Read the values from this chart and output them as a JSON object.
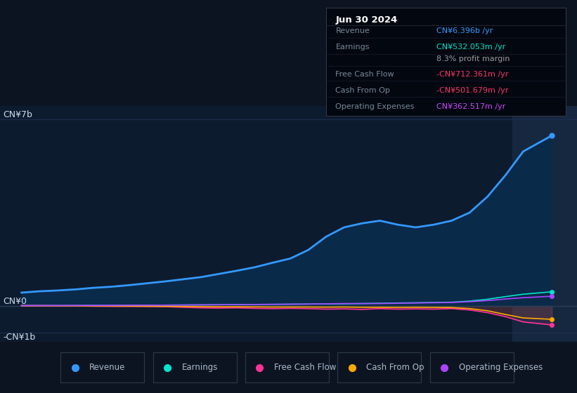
{
  "bg_color": "#0d1421",
  "plot_bg_color": "#0d1b2e",
  "grid_color": "#1e3050",
  "title_box": {
    "title": "Jun 30 2024",
    "rows": [
      {
        "label": "Revenue",
        "value": "CN¥6.396b /yr",
        "value_color": "#3399ff"
      },
      {
        "label": "Earnings",
        "value": "CN¥532.053m /yr",
        "value_color": "#00e5cc"
      },
      {
        "label": "",
        "value": "8.3% profit margin",
        "value_color": "#999999"
      },
      {
        "label": "Free Cash Flow",
        "value": "-CN¥712.361m /yr",
        "value_color": "#ff3366"
      },
      {
        "label": "Cash From Op",
        "value": "-CN¥501.679m /yr",
        "value_color": "#ff3366"
      },
      {
        "label": "Operating Expenses",
        "value": "CN¥362.517m /yr",
        "value_color": "#cc44ff"
      }
    ]
  },
  "years": [
    2017.0,
    2017.25,
    2017.5,
    2017.75,
    2018.0,
    2018.25,
    2018.5,
    2018.75,
    2019.0,
    2019.25,
    2019.5,
    2019.75,
    2020.0,
    2020.25,
    2020.5,
    2020.75,
    2021.0,
    2021.25,
    2021.5,
    2021.75,
    2022.0,
    2022.25,
    2022.5,
    2022.75,
    2023.0,
    2023.25,
    2023.5,
    2023.75,
    2024.0,
    2024.4
  ],
  "revenue": [
    0.5,
    0.55,
    0.58,
    0.62,
    0.68,
    0.72,
    0.78,
    0.85,
    0.92,
    1.0,
    1.08,
    1.2,
    1.32,
    1.45,
    1.62,
    1.78,
    2.1,
    2.6,
    2.95,
    3.1,
    3.2,
    3.05,
    2.95,
    3.05,
    3.2,
    3.5,
    4.1,
    4.9,
    5.8,
    6.396
  ],
  "earnings": [
    0.01,
    0.01,
    0.01,
    0.015,
    0.02,
    0.02,
    0.025,
    0.03,
    0.03,
    0.035,
    0.04,
    0.045,
    0.05,
    0.055,
    0.06,
    0.065,
    0.07,
    0.075,
    0.08,
    0.09,
    0.1,
    0.11,
    0.12,
    0.13,
    0.14,
    0.18,
    0.25,
    0.35,
    0.44,
    0.532
  ],
  "free_cash_flow": [
    0.005,
    0.005,
    0.002,
    0.0,
    -0.01,
    -0.015,
    -0.018,
    -0.02,
    -0.025,
    -0.05,
    -0.07,
    -0.08,
    -0.07,
    -0.09,
    -0.1,
    -0.09,
    -0.1,
    -0.12,
    -0.11,
    -0.13,
    -0.1,
    -0.12,
    -0.11,
    -0.12,
    -0.1,
    -0.15,
    -0.25,
    -0.4,
    -0.6,
    -0.712
  ],
  "cash_from_op": [
    0.01,
    0.01,
    0.008,
    0.005,
    0.002,
    0.0,
    -0.005,
    -0.01,
    -0.015,
    -0.02,
    -0.025,
    -0.03,
    -0.03,
    -0.035,
    -0.04,
    -0.04,
    -0.04,
    -0.045,
    -0.04,
    -0.05,
    -0.05,
    -0.055,
    -0.05,
    -0.055,
    -0.06,
    -0.1,
    -0.18,
    -0.32,
    -0.45,
    -0.502
  ],
  "operating_expenses": [
    0.015,
    0.016,
    0.017,
    0.018,
    0.02,
    0.022,
    0.025,
    0.028,
    0.03,
    0.035,
    0.04,
    0.045,
    0.05,
    0.055,
    0.06,
    0.065,
    0.07,
    0.08,
    0.09,
    0.09,
    0.09,
    0.1,
    0.11,
    0.12,
    0.13,
    0.16,
    0.2,
    0.26,
    0.31,
    0.363
  ],
  "revenue_color": "#3399ff",
  "earnings_color": "#00e5cc",
  "fcf_color": "#ff3399",
  "cashfromop_color": "#ffaa00",
  "opex_color": "#aa44ff",
  "revenue_fill_color": "#0a2a4a",
  "highlight_color": "#152840",
  "zero_line_color": "#2a3f5a",
  "ylabel_0": "CN¥7b",
  "ylabel_mid": "CN¥0",
  "ylabel_neg": "-CN¥1b",
  "xlim": [
    2016.7,
    2024.75
  ],
  "ylim": [
    -1.35,
    7.5
  ],
  "y0_val": 7.0,
  "ymid_val": 0.0,
  "yneg_val": -1.0,
  "xticks": [
    2017,
    2018,
    2019,
    2020,
    2021,
    2022,
    2023,
    2024
  ],
  "highlight_start": 2023.85,
  "highlight_end": 2024.75,
  "legend": [
    {
      "label": "Revenue",
      "color": "#3399ff"
    },
    {
      "label": "Earnings",
      "color": "#00e5cc"
    },
    {
      "label": "Free Cash Flow",
      "color": "#ff3399"
    },
    {
      "label": "Cash From Op",
      "color": "#ffaa00"
    },
    {
      "label": "Operating Expenses",
      "color": "#aa44ff"
    }
  ]
}
